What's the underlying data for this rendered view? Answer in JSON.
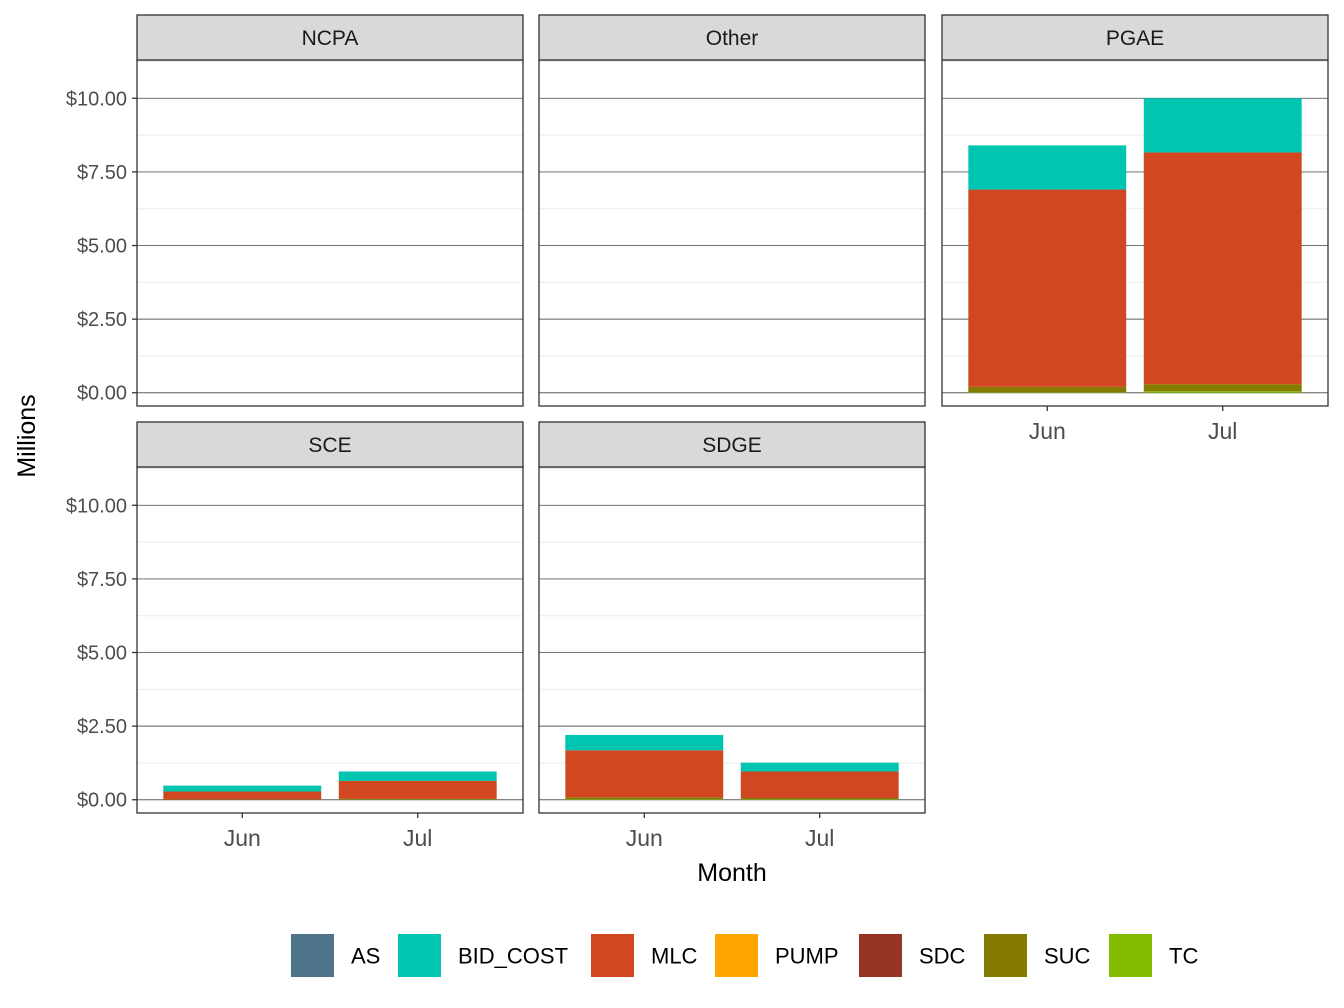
{
  "chart_data": {
    "type": "bar",
    "stacked": true,
    "faceted": true,
    "xlabel": "Month",
    "ylabel": "Millions",
    "ylim": [
      -0.45,
      11.3
    ],
    "y_ticks": [
      0,
      2.5,
      5,
      7.5,
      10
    ],
    "y_tick_labels": [
      "$0.00",
      "$2.50",
      "$5.00",
      "$7.50",
      "$10.00"
    ],
    "categories": [
      "Jun",
      "Jul"
    ],
    "stack_order": [
      "TC",
      "SUC",
      "SDC",
      "PUMP",
      "MLC",
      "BID_COST",
      "AS"
    ],
    "legend": {
      "position": "bottom",
      "items": [
        {
          "name": "AS",
          "color": "#4E7489"
        },
        {
          "name": "BID_COST",
          "color": "#00C5B1"
        },
        {
          "name": "MLC",
          "color": "#D04721"
        },
        {
          "name": "PUMP",
          "color": "#FFA500"
        },
        {
          "name": "SDC",
          "color": "#963524"
        },
        {
          "name": "SUC",
          "color": "#857B00"
        },
        {
          "name": "TC",
          "color": "#84BD00"
        }
      ]
    },
    "panels": [
      {
        "name": "NCPA",
        "series": [
          {
            "name": "TC",
            "values": [
              0,
              0
            ]
          },
          {
            "name": "SUC",
            "values": [
              0,
              0
            ]
          },
          {
            "name": "SDC",
            "values": [
              0,
              0
            ]
          },
          {
            "name": "PUMP",
            "values": [
              0,
              0
            ]
          },
          {
            "name": "MLC",
            "values": [
              0,
              0
            ]
          },
          {
            "name": "BID_COST",
            "values": [
              0,
              0
            ]
          },
          {
            "name": "AS",
            "values": [
              0,
              0
            ]
          }
        ]
      },
      {
        "name": "Other",
        "series": [
          {
            "name": "TC",
            "values": [
              0,
              0
            ]
          },
          {
            "name": "SUC",
            "values": [
              0,
              0
            ]
          },
          {
            "name": "SDC",
            "values": [
              0,
              0
            ]
          },
          {
            "name": "PUMP",
            "values": [
              0,
              0
            ]
          },
          {
            "name": "MLC",
            "values": [
              0,
              0
            ]
          },
          {
            "name": "BID_COST",
            "values": [
              0,
              0
            ]
          },
          {
            "name": "AS",
            "values": [
              0,
              0
            ]
          }
        ]
      },
      {
        "name": "PGAE",
        "series": [
          {
            "name": "TC",
            "values": [
              0.02,
              0.05
            ]
          },
          {
            "name": "SUC",
            "values": [
              0.18,
              0.24
            ]
          },
          {
            "name": "SDC",
            "values": [
              0,
              0
            ]
          },
          {
            "name": "PUMP",
            "values": [
              0,
              0
            ]
          },
          {
            "name": "MLC",
            "values": [
              6.7,
              7.87
            ]
          },
          {
            "name": "BID_COST",
            "values": [
              1.5,
              1.84
            ]
          },
          {
            "name": "AS",
            "values": [
              0,
              0
            ]
          }
        ]
      },
      {
        "name": "SCE",
        "series": [
          {
            "name": "TC",
            "values": [
              0,
              0.01
            ]
          },
          {
            "name": "SUC",
            "values": [
              0.01,
              0.02
            ]
          },
          {
            "name": "SDC",
            "values": [
              0,
              0
            ]
          },
          {
            "name": "PUMP",
            "values": [
              0,
              0
            ]
          },
          {
            "name": "MLC",
            "values": [
              0.27,
              0.61
            ]
          },
          {
            "name": "BID_COST",
            "values": [
              0.2,
              0.32
            ]
          },
          {
            "name": "AS",
            "values": [
              0,
              0
            ]
          }
        ]
      },
      {
        "name": "SDGE",
        "series": [
          {
            "name": "TC",
            "values": [
              0.02,
              0.02
            ]
          },
          {
            "name": "SUC",
            "values": [
              0.06,
              0.04
            ]
          },
          {
            "name": "SDC",
            "values": [
              0,
              0
            ]
          },
          {
            "name": "PUMP",
            "values": [
              0,
              0
            ]
          },
          {
            "name": "MLC",
            "values": [
              1.6,
              0.9
            ]
          },
          {
            "name": "BID_COST",
            "values": [
              0.52,
              0.3
            ]
          },
          {
            "name": "AS",
            "values": [
              0,
              0
            ]
          }
        ]
      }
    ]
  }
}
